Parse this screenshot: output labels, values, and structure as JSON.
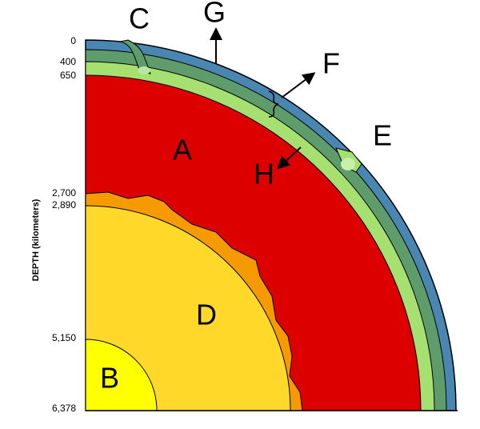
{
  "depth_axis": {
    "title": "DEPTH (kilometers)",
    "ticks": [
      "0",
      "400",
      "650",
      "2,700",
      "2,890",
      "5,150",
      "6,378"
    ]
  },
  "labels": [
    "A",
    "B",
    "C",
    "D",
    "E",
    "F",
    "G",
    "H"
  ]
}
